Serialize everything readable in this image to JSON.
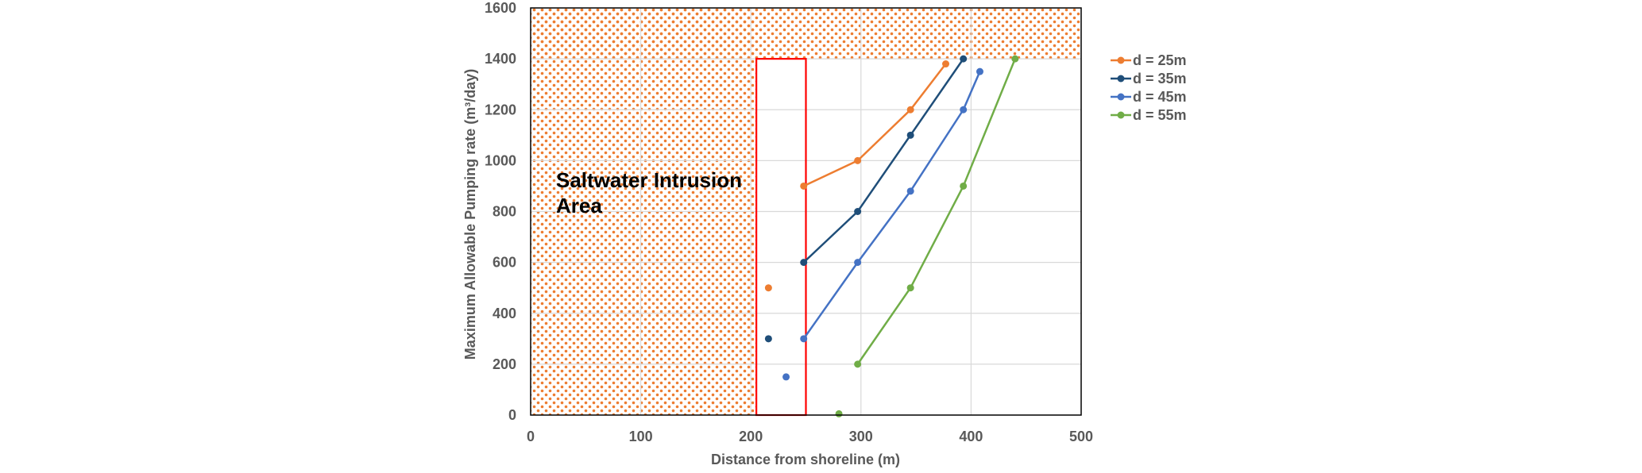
{
  "chart_data": {
    "type": "scatter",
    "xlabel": "Distance from shoreline (m)",
    "ylabel": "Maximum Allowable Pumping rate (m³/day)",
    "xlim": [
      0,
      500
    ],
    "ylim": [
      0,
      1600
    ],
    "x_ticks": [
      "0",
      "100",
      "200",
      "300",
      "400",
      "500"
    ],
    "y_ticks": [
      "0",
      "200",
      "400",
      "600",
      "800",
      "1000",
      "1200",
      "1400",
      "1600"
    ],
    "grid": true,
    "legend_position": "right",
    "annotation": {
      "line1": "Saltwater Intrusion",
      "line2": "Area"
    },
    "regions": {
      "saltwater_hatch_left": {
        "x": [
          0,
          205
        ],
        "y": [
          0,
          1600
        ]
      },
      "saltwater_hatch_top": {
        "x": [
          0,
          500
        ],
        "y": [
          1400,
          1600
        ]
      },
      "red_box": {
        "x": [
          205,
          250
        ],
        "y": [
          0,
          1400
        ],
        "color": "#FF0000"
      }
    },
    "series": [
      {
        "name": "d = 25m",
        "color": "#ED7D31",
        "points": [
          [
            216,
            500
          ]
        ],
        "line": [
          [
            248,
            900
          ],
          [
            297,
            1000
          ],
          [
            345,
            1200
          ],
          [
            377,
            1380
          ]
        ]
      },
      {
        "name": "d = 35m",
        "color": "#1F4E79",
        "points": [
          [
            216,
            300
          ]
        ],
        "line": [
          [
            248,
            600
          ],
          [
            297,
            800
          ],
          [
            345,
            1100
          ],
          [
            393,
            1400
          ]
        ]
      },
      {
        "name": "d = 45m",
        "color": "#4472C4",
        "points": [
          [
            232,
            150
          ]
        ],
        "line": [
          [
            248,
            300
          ],
          [
            297,
            600
          ],
          [
            345,
            880
          ],
          [
            393,
            1200
          ],
          [
            408,
            1350
          ]
        ]
      },
      {
        "name": "d = 55m",
        "color": "#70AD47",
        "points": [
          [
            280,
            5
          ]
        ],
        "line": [
          [
            297,
            200
          ],
          [
            345,
            500
          ],
          [
            393,
            900
          ],
          [
            440,
            1400
          ]
        ]
      }
    ],
    "hatch_color": "#ED7D31"
  }
}
